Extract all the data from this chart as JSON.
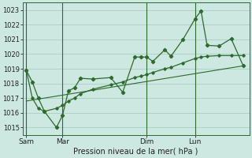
{
  "bg_color": "#cce8e0",
  "line_color": "#2d6a2d",
  "grid_color": "#a8cec4",
  "xlabel": "Pression niveau de la mer( hPa )",
  "ylim": [
    1014.5,
    1023.5
  ],
  "yticks": [
    1015,
    1016,
    1017,
    1018,
    1019,
    1020,
    1021,
    1022,
    1023
  ],
  "xtick_labels": [
    "Sam",
    "Mar",
    "Dim",
    "Lun"
  ],
  "xtick_positions": [
    0,
    3,
    10,
    14
  ],
  "vline_positions": [
    0,
    3,
    10,
    14
  ],
  "xlim": [
    -0.3,
    18.5
  ],
  "series1_x": [
    0,
    0.5,
    1.0,
    1.5,
    2.5,
    3.0,
    3.5,
    4.0,
    4.5,
    5.5,
    7.0,
    8.0,
    9.0,
    9.5,
    10.0,
    10.5,
    11.5,
    12.0,
    13.0,
    14.0,
    14.5,
    15.0,
    16.0,
    17.0,
    18.0
  ],
  "series1_y": [
    1018.9,
    1018.1,
    1017.0,
    1016.1,
    1015.0,
    1015.8,
    1017.5,
    1017.7,
    1018.35,
    1018.3,
    1018.4,
    1017.4,
    1019.8,
    1019.8,
    1019.8,
    1019.5,
    1020.3,
    1019.85,
    1021.0,
    1022.4,
    1022.95,
    1020.6,
    1020.55,
    1021.05,
    1019.2
  ],
  "series2_x": [
    0,
    0.5,
    1.0,
    1.5,
    2.5,
    3.0,
    3.5,
    4.0,
    4.5,
    5.5,
    7.0,
    8.0,
    9.0,
    9.5,
    10.0,
    10.5,
    11.5,
    12.0,
    13.0,
    14.0,
    14.5,
    15.0,
    16.0,
    17.0,
    18.0
  ],
  "series2_y": [
    1018.9,
    1017.0,
    1016.3,
    1016.1,
    1016.3,
    1016.5,
    1016.8,
    1017.0,
    1017.3,
    1017.6,
    1017.9,
    1018.1,
    1018.4,
    1018.5,
    1018.6,
    1018.75,
    1019.0,
    1019.1,
    1019.4,
    1019.7,
    1019.8,
    1019.85,
    1019.9,
    1019.9,
    1019.9
  ],
  "series3_x": [
    0,
    18.0
  ],
  "series3_y": [
    1016.8,
    1019.2
  ]
}
